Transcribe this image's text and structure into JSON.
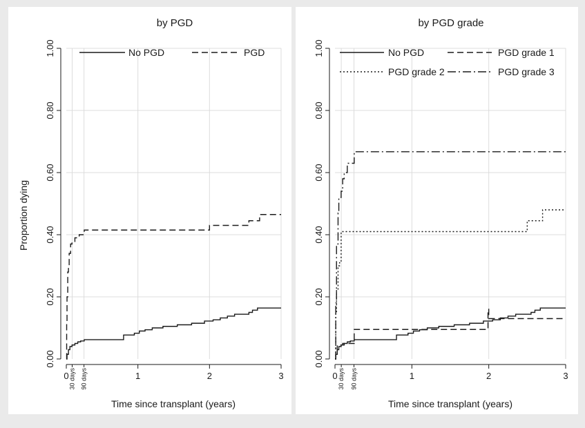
{
  "chart_data": [
    {
      "type": "line",
      "title": "by PGD",
      "xlabel": "Time since transplant (years)",
      "ylabel": "Proportion dying",
      "xlim": [
        0,
        3
      ],
      "ylim": [
        0,
        1
      ],
      "x_ticks": [
        0,
        1,
        2,
        3
      ],
      "x_tick_labels": [
        "0",
        "1",
        "2",
        "3"
      ],
      "y_ticks": [
        0,
        0.2,
        0.4,
        0.6,
        0.8,
        1.0
      ],
      "y_tick_labels": [
        "0.00",
        "0.20",
        "0.40",
        "0.60",
        "0.80",
        "1.00"
      ],
      "reference_lines": [
        {
          "label": "30 days",
          "x": 0.082
        },
        {
          "label": "90 days",
          "x": 0.247
        }
      ],
      "grid": true,
      "legend_position": "top",
      "series": [
        {
          "name": "No PGD",
          "dash": "solid",
          "x": [
            0,
            0.01,
            0.03,
            0.05,
            0.08,
            0.12,
            0.16,
            0.2,
            0.25,
            0.8,
            0.95,
            1.02,
            1.1,
            1.2,
            1.35,
            1.55,
            1.75,
            1.93,
            2.05,
            2.15,
            2.25,
            2.35,
            2.55,
            2.6,
            2.67,
            3.0
          ],
          "y": [
            0,
            0.015,
            0.03,
            0.04,
            0.045,
            0.05,
            0.055,
            0.058,
            0.062,
            0.077,
            0.083,
            0.09,
            0.094,
            0.1,
            0.105,
            0.11,
            0.115,
            0.122,
            0.126,
            0.132,
            0.138,
            0.144,
            0.15,
            0.157,
            0.164,
            0.164
          ]
        },
        {
          "name": "PGD",
          "dash": "dashed",
          "x": [
            0,
            0.005,
            0.01,
            0.02,
            0.03,
            0.04,
            0.06,
            0.08,
            0.12,
            0.18,
            0.25,
            1.0,
            1.97,
            2.0,
            2.55,
            2.7,
            3.0
          ],
          "y": [
            0,
            0.12,
            0.2,
            0.28,
            0.3,
            0.34,
            0.37,
            0.375,
            0.39,
            0.4,
            0.415,
            0.415,
            0.415,
            0.43,
            0.445,
            0.465,
            0.465
          ]
        }
      ]
    },
    {
      "type": "line",
      "title": "by PGD grade",
      "xlabel": "Time since transplant (years)",
      "ylabel": "",
      "xlim": [
        0,
        3
      ],
      "ylim": [
        0,
        1
      ],
      "x_ticks": [
        0,
        1,
        2,
        3
      ],
      "x_tick_labels": [
        "0",
        "1",
        "2",
        "3"
      ],
      "y_ticks": [
        0,
        0.2,
        0.4,
        0.6,
        0.8,
        1.0
      ],
      "y_tick_labels": [
        "0.00",
        "0.20",
        "0.40",
        "0.60",
        "0.80",
        "1.00"
      ],
      "reference_lines": [
        {
          "label": "30 days",
          "x": 0.082
        },
        {
          "label": "90 days",
          "x": 0.247
        }
      ],
      "grid": true,
      "legend_position": "top",
      "series": [
        {
          "name": "No PGD",
          "dash": "solid",
          "x": [
            0,
            0.01,
            0.03,
            0.05,
            0.08,
            0.12,
            0.16,
            0.2,
            0.25,
            0.8,
            0.95,
            1.02,
            1.1,
            1.2,
            1.35,
            1.55,
            1.75,
            1.93,
            2.05,
            2.15,
            2.25,
            2.35,
            2.55,
            2.6,
            2.67,
            3.0
          ],
          "y": [
            0,
            0.015,
            0.03,
            0.04,
            0.045,
            0.05,
            0.055,
            0.058,
            0.062,
            0.077,
            0.083,
            0.09,
            0.094,
            0.1,
            0.105,
            0.11,
            0.115,
            0.122,
            0.126,
            0.132,
            0.138,
            0.144,
            0.15,
            0.157,
            0.164,
            0.164
          ]
        },
        {
          "name": "PGD grade 1",
          "dash": "dashed",
          "x": [
            0,
            0.01,
            0.03,
            0.1,
            0.2,
            0.25,
            1.0,
            1.98,
            1.99,
            2.0,
            3.0
          ],
          "y": [
            0,
            0.02,
            0.045,
            0.05,
            0.05,
            0.095,
            0.095,
            0.095,
            0.16,
            0.13,
            0.13
          ]
        },
        {
          "name": "PGD grade 2",
          "dash": "dotted",
          "x": [
            0,
            0.01,
            0.02,
            0.04,
            0.06,
            0.08,
            2.47,
            2.5,
            2.65,
            2.7,
            3.0
          ],
          "y": [
            0,
            0.15,
            0.22,
            0.3,
            0.31,
            0.41,
            0.41,
            0.445,
            0.445,
            0.48,
            0.48
          ]
        },
        {
          "name": "PGD grade 3",
          "dash": "dashdot",
          "x": [
            0,
            0.01,
            0.02,
            0.04,
            0.05,
            0.08,
            0.1,
            0.12,
            0.16,
            0.2,
            0.25,
            3.0
          ],
          "y": [
            0,
            0.18,
            0.37,
            0.47,
            0.52,
            0.54,
            0.58,
            0.6,
            0.63,
            0.63,
            0.667,
            0.667
          ]
        }
      ]
    }
  ]
}
